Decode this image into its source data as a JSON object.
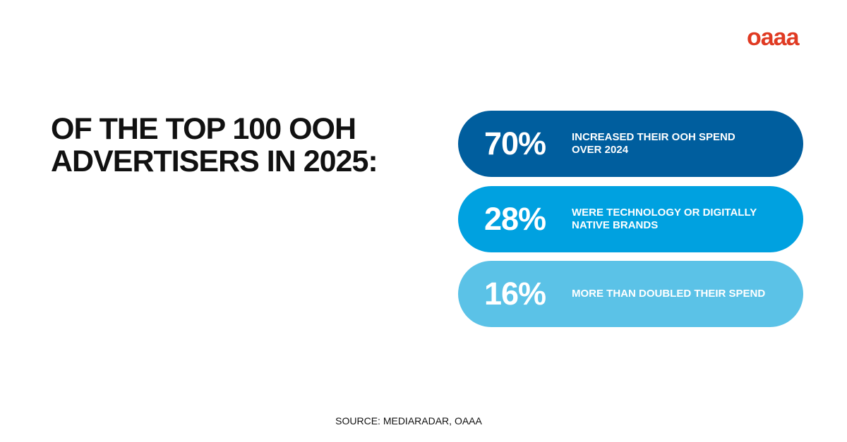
{
  "logo": "oaaa",
  "title": {
    "lines": [
      "OF THE TOP 100 OOH",
      "ADVERTISERS IN 2025:"
    ]
  },
  "stats": [
    {
      "value": "70%",
      "lines": [
        "INCREASED THEIR OOH SPEND",
        "OVER 2024"
      ]
    },
    {
      "value": "28%",
      "lines": [
        "WERE TECHNOLOGY OR DIGITALLY",
        "NATIVE BRANDS"
      ]
    },
    {
      "value": "16%",
      "lines": [
        "MORE THAN DOUBLED THEIR SPEND"
      ]
    }
  ],
  "source": "SOURCE: MEDIARADAR, OAAA"
}
